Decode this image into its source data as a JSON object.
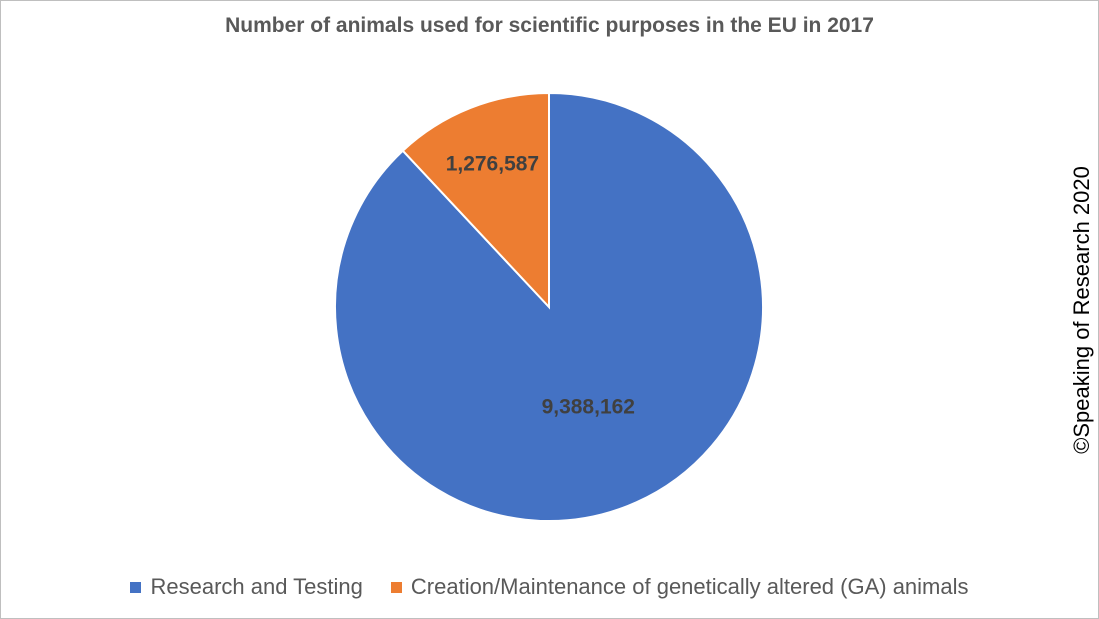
{
  "chart_data": {
    "type": "pie",
    "title": "Number of animals used for scientific purposes in the EU in 2017",
    "slices": [
      {
        "label": "Research and Testing",
        "value": 9388162,
        "display": "9,388,162",
        "color": "#4472C4"
      },
      {
        "label": "Creation/Maintenance of genetically altered (GA) animals",
        "value": 1276587,
        "display": "1,276,587",
        "color": "#ED7D31"
      }
    ],
    "legend_position": "bottom",
    "start_angle_deg": 0,
    "direction": "clockwise"
  },
  "watermark": "©Speaking of Research 2020"
}
